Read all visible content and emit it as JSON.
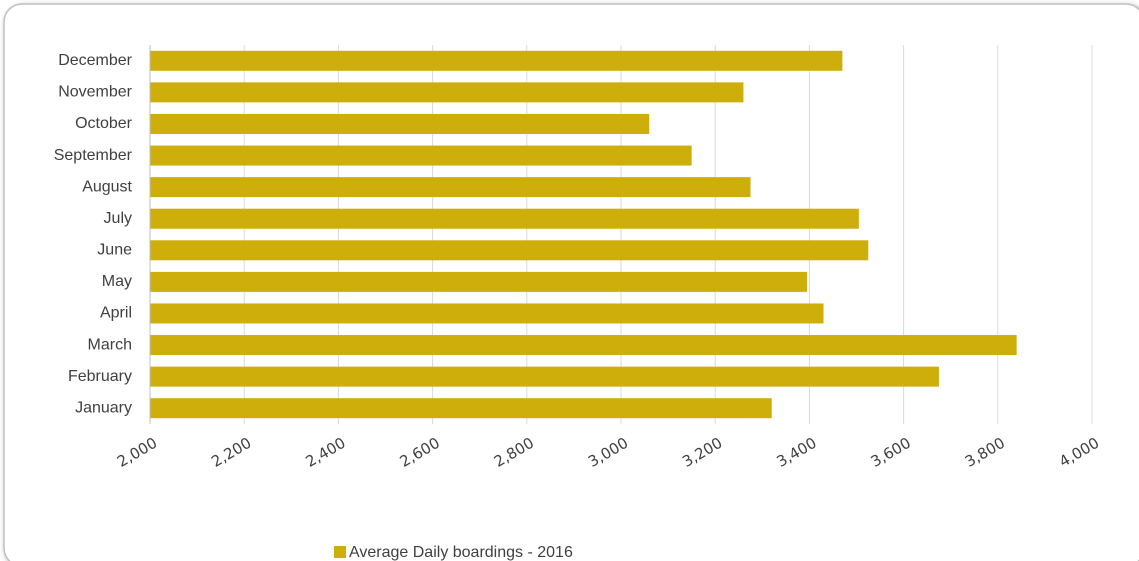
{
  "chart_data": {
    "type": "barh",
    "categories": [
      "January",
      "February",
      "March",
      "April",
      "May",
      "June",
      "July",
      "August",
      "September",
      "October",
      "November",
      "December"
    ],
    "series": [
      {
        "name": "Average Daily boardings - 2016",
        "color": "#cdae0a",
        "values": [
          3320,
          3675,
          3840,
          3430,
          3395,
          3525,
          3505,
          3275,
          3150,
          3060,
          3260,
          3470
        ]
      }
    ],
    "xlim": [
      2000,
      4000
    ],
    "xticks": [
      {
        "value": 2000,
        "label": "2,000"
      },
      {
        "value": 2200,
        "label": "2,200"
      },
      {
        "value": 2400,
        "label": "2,400"
      },
      {
        "value": 2600,
        "label": "2,600"
      },
      {
        "value": 2800,
        "label": "2,800"
      },
      {
        "value": 3000,
        "label": "3,000"
      },
      {
        "value": 3200,
        "label": "3,200"
      },
      {
        "value": 3400,
        "label": "3,400"
      },
      {
        "value": 3600,
        "label": "3,600"
      },
      {
        "value": 3800,
        "label": "3,800"
      },
      {
        "value": 4000,
        "label": "4,000"
      }
    ],
    "grid": true,
    "legend": "bottom"
  }
}
